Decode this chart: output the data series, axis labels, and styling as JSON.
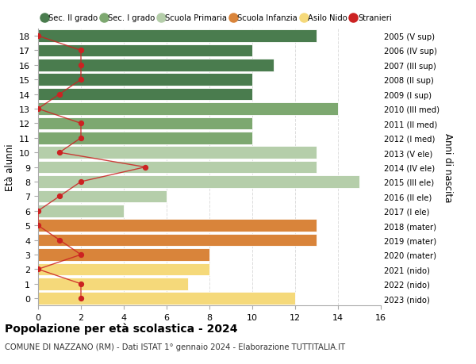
{
  "ages": [
    18,
    17,
    16,
    15,
    14,
    13,
    12,
    11,
    10,
    9,
    8,
    7,
    6,
    5,
    4,
    3,
    2,
    1,
    0
  ],
  "right_labels": [
    "2005 (V sup)",
    "2006 (IV sup)",
    "2007 (III sup)",
    "2008 (II sup)",
    "2009 (I sup)",
    "2010 (III med)",
    "2011 (II med)",
    "2012 (I med)",
    "2013 (V ele)",
    "2014 (IV ele)",
    "2015 (III ele)",
    "2016 (II ele)",
    "2017 (I ele)",
    "2018 (mater)",
    "2019 (mater)",
    "2020 (mater)",
    "2021 (nido)",
    "2022 (nido)",
    "2023 (nido)"
  ],
  "bar_values": [
    13,
    10,
    11,
    10,
    10,
    14,
    10,
    10,
    13,
    13,
    15,
    6,
    4,
    13,
    13,
    8,
    8,
    7,
    12
  ],
  "bar_colors": [
    "#4a7c4e",
    "#4a7c4e",
    "#4a7c4e",
    "#4a7c4e",
    "#4a7c4e",
    "#7da870",
    "#7da870",
    "#7da870",
    "#b5ceaa",
    "#b5ceaa",
    "#b5ceaa",
    "#b5ceaa",
    "#b5ceaa",
    "#d9843a",
    "#d9843a",
    "#d9843a",
    "#f5d97a",
    "#f5d97a",
    "#f5d97a"
  ],
  "stranieri_x": [
    0,
    2,
    2,
    2,
    1,
    0,
    2,
    2,
    1,
    5,
    2,
    1,
    0,
    0,
    1,
    2,
    0,
    2,
    2
  ],
  "xlim": [
    0,
    16
  ],
  "ylim": [
    -0.5,
    18.5
  ],
  "xlabel_ticks": [
    0,
    2,
    4,
    6,
    8,
    10,
    12,
    14,
    16
  ],
  "ylabel": "Età alunni",
  "right_ylabel": "Anni di nascita",
  "legend_items": [
    {
      "label": "Sec. II grado",
      "color": "#4a7c4e"
    },
    {
      "label": "Sec. I grado",
      "color": "#7da870"
    },
    {
      "label": "Scuola Primaria",
      "color": "#b5ceaa"
    },
    {
      "label": "Scuola Infanzia",
      "color": "#d9843a"
    },
    {
      "label": "Asilo Nido",
      "color": "#f5d97a"
    },
    {
      "label": "Stranieri",
      "color": "#cc2222"
    }
  ],
  "title": "Popolazione per età scolastica - 2024",
  "subtitle": "COMUNE DI NAZZANO (RM) - Dati ISTAT 1° gennaio 2024 - Elaborazione TUTTITALIA.IT",
  "background_color": "#ffffff",
  "grid_color": "#dddddd"
}
